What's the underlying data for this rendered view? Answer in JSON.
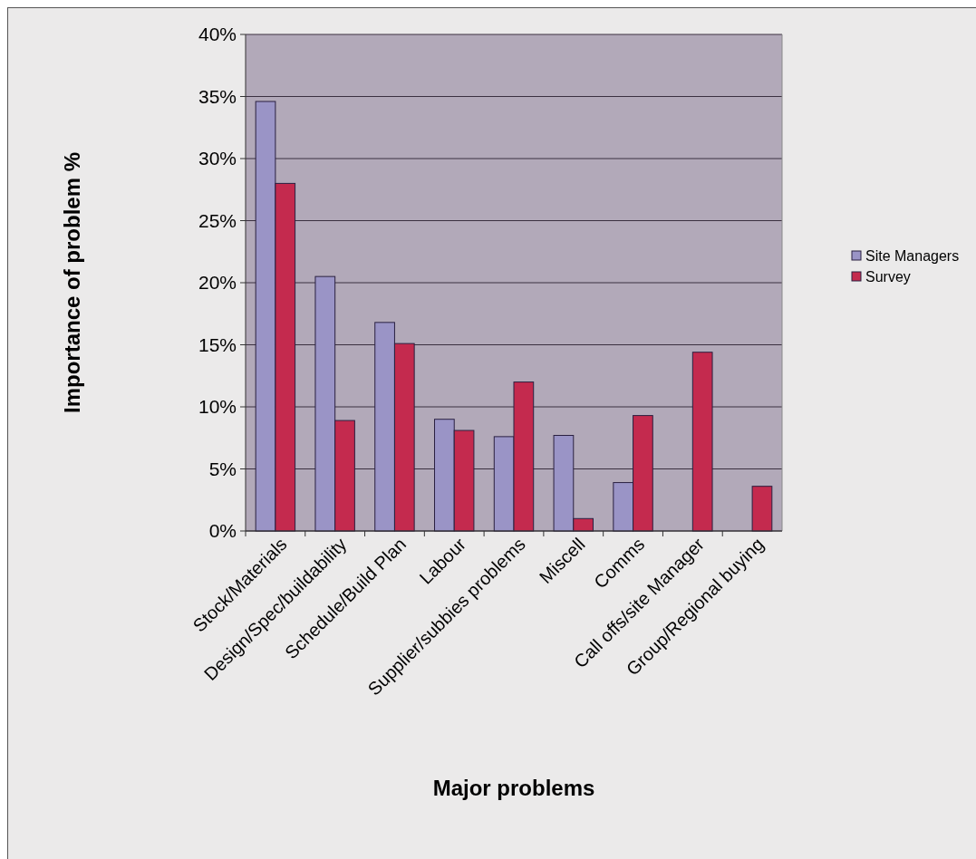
{
  "chart_data": {
    "type": "bar",
    "xlabel": "Major problems",
    "ylabel": "Importance of problem %",
    "categories": [
      "Stock/Materials",
      "Design/Spec/buildability",
      "Schedule/Build Plan",
      "Labour",
      "Supplier/subbies problems",
      "Miscell",
      "Comms",
      "Call offs/site Manager",
      "Group/Regional buying"
    ],
    "series": [
      {
        "name": "Site Managers",
        "color": "#9a94c6",
        "values": [
          34.6,
          20.5,
          16.8,
          9.0,
          7.6,
          7.7,
          3.9,
          0,
          0
        ]
      },
      {
        "name": "Survey",
        "color": "#c42a4e",
        "values": [
          28.0,
          8.9,
          15.1,
          8.1,
          12.0,
          1.0,
          9.3,
          14.4,
          3.6
        ]
      }
    ],
    "ylim": [
      0,
      40
    ],
    "yticks": [
      {
        "value": 0,
        "label": "0%"
      },
      {
        "value": 5,
        "label": "5%"
      },
      {
        "value": 10,
        "label": "10%"
      },
      {
        "value": 15,
        "label": "15%"
      },
      {
        "value": 20,
        "label": "20%"
      },
      {
        "value": 25,
        "label": "25%"
      },
      {
        "value": 30,
        "label": "30%"
      },
      {
        "value": 35,
        "label": "35%"
      },
      {
        "value": 40,
        "label": "40%"
      }
    ],
    "grid": "y",
    "legend": "right"
  }
}
